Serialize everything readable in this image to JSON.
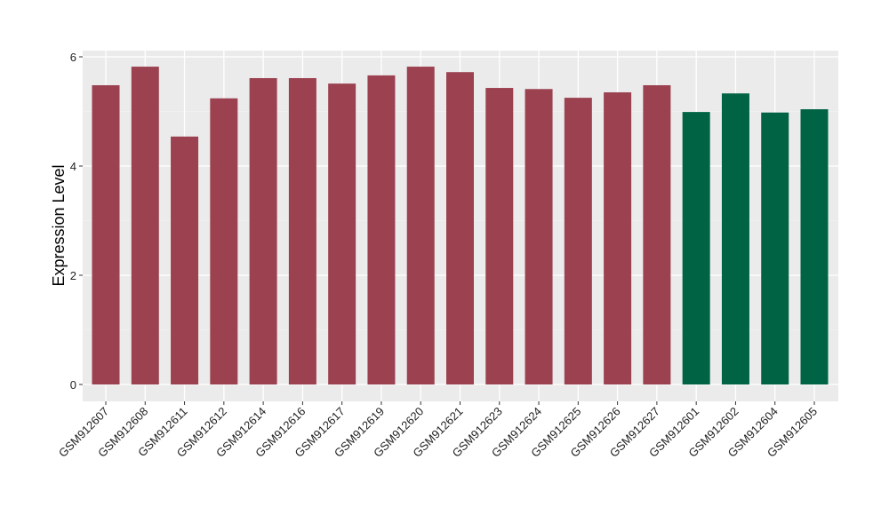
{
  "chart_data": {
    "type": "bar",
    "title": "",
    "xlabel": "",
    "ylabel": "Expression Level",
    "ylim": [
      -0.3,
      6.1
    ],
    "yticks": [
      0,
      2,
      4,
      6
    ],
    "grid": true,
    "categories": [
      "GSM912607",
      "GSM912608",
      "GSM912611",
      "GSM912612",
      "GSM912614",
      "GSM912616",
      "GSM912617",
      "GSM912619",
      "GSM912620",
      "GSM912621",
      "GSM912623",
      "GSM912624",
      "GSM912625",
      "GSM912626",
      "GSM912627",
      "GSM912601",
      "GSM912602",
      "GSM912604",
      "GSM912605"
    ],
    "values": [
      5.48,
      5.82,
      4.54,
      5.24,
      5.61,
      5.61,
      5.51,
      5.66,
      5.82,
      5.72,
      5.43,
      5.41,
      5.25,
      5.35,
      5.48,
      4.99,
      5.33,
      4.98,
      5.04
    ],
    "groups": [
      "a",
      "a",
      "a",
      "a",
      "a",
      "a",
      "a",
      "a",
      "a",
      "a",
      "a",
      "a",
      "a",
      "a",
      "a",
      "b",
      "b",
      "b",
      "b"
    ],
    "colors": {
      "a": "#9b4150",
      "b": "#006444"
    },
    "panel_background": "#ebebeb"
  }
}
